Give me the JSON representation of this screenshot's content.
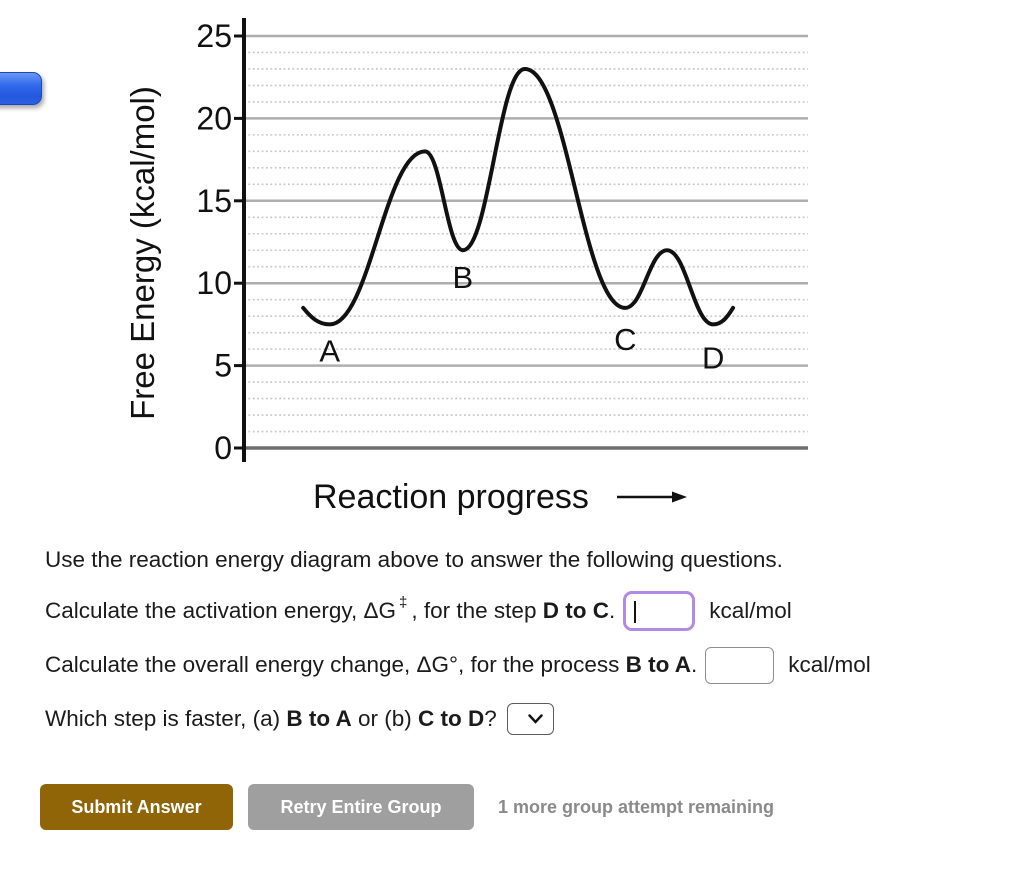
{
  "nav_peek": {
    "color": "#2a60e2"
  },
  "chart_data": {
    "type": "line",
    "title": "",
    "xlabel": "Reaction progress",
    "ylabel": "Free Energy (kcal/mol)",
    "ylim": [
      0,
      25
    ],
    "y_major_ticks": [
      0,
      5,
      10,
      15,
      20,
      25
    ],
    "y_minor_step": 1,
    "grid": {
      "major": "solid",
      "minor": "dotted"
    },
    "legend": "none",
    "curve_color": "#111111",
    "profile_points": [
      {
        "x": 0.105,
        "energy": 8.5
      },
      {
        "x": 0.152,
        "energy": 7.5,
        "label": "A",
        "label_dy": 37
      },
      {
        "x": 0.321,
        "energy": 18.0
      },
      {
        "x": 0.388,
        "energy": 12.0,
        "label": "B",
        "label_dy": 38
      },
      {
        "x": 0.498,
        "energy": 23.0
      },
      {
        "x": 0.676,
        "energy": 8.5,
        "label": "C",
        "label_dy": 42
      },
      {
        "x": 0.75,
        "energy": 12.0
      },
      {
        "x": 0.832,
        "energy": 7.5,
        "label": "D",
        "label_dy": 44
      },
      {
        "x": 0.867,
        "energy": 8.5
      }
    ]
  },
  "questions": {
    "intro": "Use the reaction energy diagram above to answer the following questions.",
    "q1": {
      "text_before": "Calculate the activation energy, ΔG",
      "superscript": "‡",
      "text_mid": ", for the step ",
      "step": "D to C",
      "text_after": ".",
      "input_value": "",
      "unit": "kcal/mol"
    },
    "q2": {
      "text_before": "Calculate the overall energy change, ΔG°, for the process ",
      "step": "B to A",
      "text_after": ".",
      "input_value": "",
      "unit": "kcal/mol"
    },
    "q3": {
      "text_before": "Which step is faster, (a) ",
      "option_a": "B to A",
      "text_mid": " or (b) ",
      "option_b": "C to D",
      "text_after": "?",
      "select_value": ""
    }
  },
  "footer": {
    "submit_label": "Submit Answer",
    "retry_label": "Retry Entire Group",
    "attempts_note": "1 more group attempt remaining"
  },
  "icons": {
    "select_chevron": "chevron-down"
  },
  "colors": {
    "submit_button": "#8f6508",
    "retry_button": "#9f9f9f",
    "focused_input_border": "#b18ae1",
    "note_text": "#8a8a8a"
  }
}
